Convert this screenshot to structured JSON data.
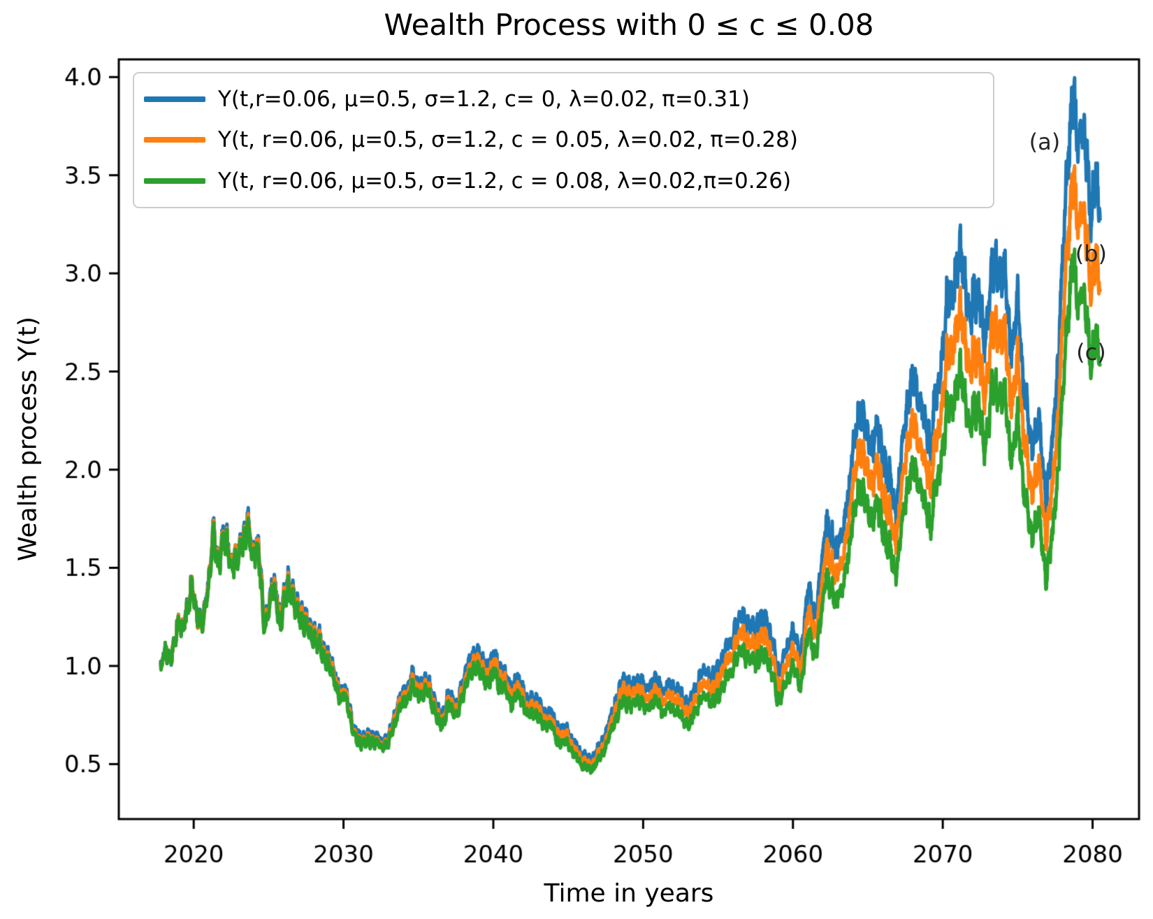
{
  "figure": {
    "title": "Wealth Process with 0 ≤ c ≤ 0.08"
  },
  "chart_data": {
    "type": "line",
    "title": "Wealth Process with 0 ≤ c ≤ 0.08",
    "xlabel": "Time in years",
    "ylabel": "Wealth process Y(t)",
    "xlim": [
      2015.0,
      2083.1
    ],
    "ylim": [
      0.22,
      4.09
    ],
    "xticks": [
      2020,
      2030,
      2040,
      2050,
      2060,
      2070,
      2080
    ],
    "yticks": [
      0.5,
      1.0,
      1.5,
      2.0,
      2.5,
      3.0,
      3.5,
      4.0
    ],
    "grid": false,
    "legend_position": "upper left",
    "note": "Three simulated stochastic wealth paths; values below are keypoint approximations read from the plot",
    "x_keypoints": [
      2017.8,
      2018.1,
      2018.5,
      2018.9,
      2019.2,
      2019.6,
      2019.9,
      2020.3,
      2020.6,
      2021.0,
      2021.3,
      2021.6,
      2022.0,
      2022.4,
      2022.8,
      2023.2,
      2023.6,
      2023.9,
      2024.3,
      2024.7,
      2025.0,
      2025.4,
      2025.8,
      2026.3,
      2026.9,
      2027.5,
      2028.1,
      2028.7,
      2029.3,
      2029.8,
      2030.2,
      2030.7,
      2031.2,
      2031.8,
      2032.4,
      2033.0,
      2033.6,
      2034.1,
      2034.7,
      2035.2,
      2035.7,
      2036.1,
      2036.6,
      2037.1,
      2037.6,
      2038.2,
      2038.9,
      2039.5,
      2040.1,
      2040.7,
      2041.2,
      2041.8,
      2042.3,
      2042.8,
      2043.3,
      2043.8,
      2044.4,
      2044.9,
      2045.4,
      2046.0,
      2046.5,
      2047.0,
      2047.6,
      2048.1,
      2048.7,
      2049.2,
      2049.7,
      2050.2,
      2050.8,
      2051.4,
      2052.0,
      2052.6,
      2053.1,
      2053.7,
      2054.2,
      2054.8,
      2055.4,
      2056.0,
      2056.6,
      2057.1,
      2057.7,
      2058.2,
      2058.7,
      2059.1,
      2059.6,
      2060.0,
      2060.5,
      2061.0,
      2061.6,
      2062.2,
      2062.7,
      2063.3,
      2063.9,
      2064.5,
      2065.1,
      2065.7,
      2066.3,
      2066.9,
      2067.5,
      2068.1,
      2068.7,
      2069.2,
      2069.8,
      2070.3,
      2070.8,
      2071.3,
      2071.8,
      2072.3,
      2072.8,
      2073.3,
      2073.8,
      2074.2,
      2074.6,
      2075.0,
      2075.5,
      2075.9,
      2076.4,
      2076.9,
      2077.3,
      2077.7,
      2078.1,
      2078.4,
      2078.7,
      2079.0,
      2079.3,
      2079.6,
      2079.9,
      2080.2,
      2080.5
    ],
    "series": [
      {
        "name": "Y(t,r=0.06, μ=0.5, σ=1.2, c= 0, λ=0.02, π=0.31)",
        "color": "#1f77b4",
        "annotation": "(a)",
        "values": [
          1.0,
          1.07,
          1.04,
          1.22,
          1.16,
          1.31,
          1.4,
          1.26,
          1.21,
          1.45,
          1.7,
          1.51,
          1.68,
          1.57,
          1.54,
          1.63,
          1.74,
          1.58,
          1.66,
          1.2,
          1.32,
          1.43,
          1.26,
          1.44,
          1.31,
          1.24,
          1.17,
          1.09,
          0.98,
          0.87,
          0.89,
          0.67,
          0.63,
          0.65,
          0.62,
          0.63,
          0.8,
          0.88,
          0.95,
          0.9,
          0.94,
          0.8,
          0.74,
          0.87,
          0.8,
          0.99,
          1.08,
          0.99,
          1.05,
          0.96,
          0.9,
          0.92,
          0.81,
          0.85,
          0.76,
          0.77,
          0.67,
          0.69,
          0.6,
          0.55,
          0.52,
          0.57,
          0.68,
          0.81,
          0.94,
          0.9,
          0.94,
          0.88,
          0.93,
          0.88,
          0.92,
          0.84,
          0.81,
          0.93,
          0.98,
          0.94,
          1.06,
          1.16,
          1.27,
          1.19,
          1.21,
          1.25,
          1.09,
          0.95,
          1.1,
          1.19,
          1.04,
          1.38,
          1.26,
          1.74,
          1.6,
          1.67,
          2.02,
          2.36,
          2.09,
          2.2,
          1.97,
          1.81,
          2.28,
          2.5,
          2.26,
          2.15,
          2.5,
          2.86,
          2.95,
          3.12,
          2.75,
          2.94,
          2.61,
          3.05,
          3.0,
          2.92,
          2.63,
          2.81,
          2.39,
          2.11,
          2.26,
          1.87,
          2.09,
          2.6,
          3.14,
          3.72,
          3.88,
          3.62,
          3.84,
          3.56,
          3.36,
          3.48,
          3.3
        ]
      },
      {
        "name": "Y(t, r=0.06, μ=0.5, σ=1.2, c = 0.05, λ=0.02, π=0.28)",
        "color": "#ff7f0e",
        "annotation": "(b)",
        "values": [
          1.0,
          1.07,
          1.04,
          1.22,
          1.16,
          1.31,
          1.4,
          1.25,
          1.2,
          1.44,
          1.69,
          1.5,
          1.67,
          1.56,
          1.53,
          1.61,
          1.72,
          1.56,
          1.64,
          1.19,
          1.3,
          1.41,
          1.24,
          1.42,
          1.29,
          1.22,
          1.15,
          1.07,
          0.96,
          0.85,
          0.87,
          0.65,
          0.61,
          0.63,
          0.6,
          0.61,
          0.78,
          0.85,
          0.92,
          0.87,
          0.91,
          0.77,
          0.71,
          0.84,
          0.77,
          0.95,
          1.04,
          0.95,
          1.01,
          0.92,
          0.86,
          0.88,
          0.77,
          0.81,
          0.72,
          0.73,
          0.64,
          0.66,
          0.57,
          0.52,
          0.49,
          0.54,
          0.64,
          0.77,
          0.89,
          0.85,
          0.89,
          0.83,
          0.87,
          0.83,
          0.86,
          0.79,
          0.76,
          0.87,
          0.91,
          0.88,
          0.99,
          1.08,
          1.18,
          1.1,
          1.12,
          1.16,
          1.01,
          0.88,
          1.02,
          1.1,
          0.96,
          1.27,
          1.16,
          1.6,
          1.47,
          1.53,
          1.85,
          2.16,
          1.91,
          2.01,
          1.79,
          1.65,
          2.07,
          2.27,
          2.05,
          1.95,
          2.26,
          2.58,
          2.66,
          2.81,
          2.48,
          2.64,
          2.34,
          2.74,
          2.69,
          2.62,
          2.36,
          2.51,
          2.14,
          1.88,
          2.02,
          1.67,
          1.86,
          2.31,
          2.79,
          3.3,
          3.45,
          3.21,
          3.4,
          3.15,
          2.98,
          3.08,
          2.92
        ]
      },
      {
        "name": "Y(t, r=0.06, μ=0.5, σ=1.2, c = 0.08, λ=0.02,π=0.26)",
        "color": "#2ca02c",
        "annotation": "(c)",
        "values": [
          1.0,
          1.07,
          1.04,
          1.22,
          1.15,
          1.3,
          1.39,
          1.25,
          1.2,
          1.43,
          1.68,
          1.49,
          1.66,
          1.54,
          1.51,
          1.6,
          1.7,
          1.55,
          1.62,
          1.17,
          1.29,
          1.39,
          1.22,
          1.4,
          1.27,
          1.2,
          1.13,
          1.05,
          0.94,
          0.83,
          0.85,
          0.64,
          0.6,
          0.62,
          0.59,
          0.6,
          0.75,
          0.83,
          0.89,
          0.84,
          0.88,
          0.75,
          0.69,
          0.81,
          0.74,
          0.92,
          1.0,
          0.91,
          0.96,
          0.88,
          0.82,
          0.84,
          0.74,
          0.77,
          0.69,
          0.7,
          0.6,
          0.62,
          0.54,
          0.49,
          0.47,
          0.51,
          0.61,
          0.72,
          0.83,
          0.8,
          0.83,
          0.78,
          0.82,
          0.77,
          0.8,
          0.73,
          0.7,
          0.81,
          0.85,
          0.81,
          0.91,
          1.0,
          1.09,
          1.02,
          1.03,
          1.06,
          0.93,
          0.81,
          0.93,
          1.01,
          0.88,
          1.16,
          1.06,
          1.46,
          1.34,
          1.39,
          1.68,
          1.95,
          1.73,
          1.81,
          1.62,
          1.48,
          1.86,
          2.04,
          1.84,
          1.74,
          2.02,
          2.31,
          2.37,
          2.5,
          2.2,
          2.35,
          2.08,
          2.43,
          2.38,
          2.31,
          2.08,
          2.22,
          1.88,
          1.66,
          1.77,
          1.46,
          1.63,
          2.03,
          2.44,
          2.89,
          3.04,
          2.8,
          2.98,
          2.75,
          2.59,
          2.68,
          2.54
        ]
      }
    ],
    "annotations": [
      {
        "text": "(a)",
        "x": 2076.8,
        "y": 3.67
      },
      {
        "text": "(b)",
        "x": 2079.9,
        "y": 3.1
      },
      {
        "text": "(c)",
        "x": 2079.9,
        "y": 2.6
      }
    ]
  }
}
